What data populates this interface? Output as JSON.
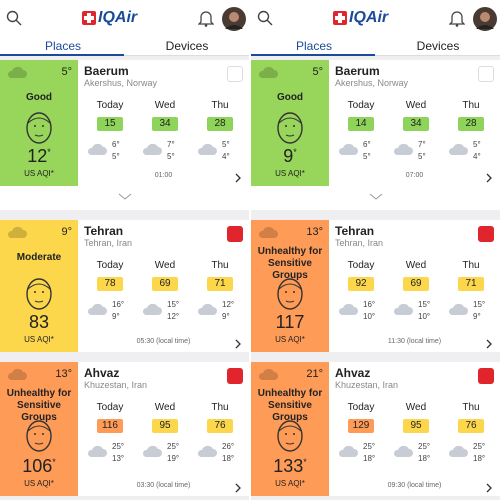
{
  "panels": [
    {
      "brand": "IQAir",
      "tabs": [
        "Places",
        "Devices"
      ],
      "cards": [
        {
          "temp": "5°",
          "level": "Good",
          "level_color": "#97d65a",
          "aqi": 12,
          "aqi_mark": "*",
          "unit": "US AQI*",
          "city": "Baerum",
          "region": "Akershus, Norway",
          "time": "01:00",
          "forecast": [
            {
              "day": "Today",
              "aqi": 15,
              "color": "#8fd45a",
              "high": "6°",
              "low": "5°"
            },
            {
              "day": "Wed",
              "aqi": 34,
              "color": "#8fd45a",
              "high": "7°",
              "low": "5°"
            },
            {
              "day": "Thu",
              "aqi": 28,
              "color": "#8fd45a",
              "high": "5°",
              "low": "4°"
            }
          ]
        },
        {
          "temp": "9°",
          "level": "Moderate",
          "level_color": "#fdd74b",
          "aqi": 83,
          "unit": "US AQI*",
          "city": "Tehran",
          "region": "Tehran, Iran",
          "time": "05:30 (local time)",
          "forecast": [
            {
              "day": "Today",
              "aqi": 78,
              "color": "#fdd74b",
              "high": "16°",
              "low": "9°"
            },
            {
              "day": "Wed",
              "aqi": 69,
              "color": "#fdd74b",
              "high": "15°",
              "low": "12°"
            },
            {
              "day": "Thu",
              "aqi": 71,
              "color": "#fdd74b",
              "high": "12°",
              "low": "9°"
            }
          ]
        },
        {
          "temp": "13°",
          "level": "Unhealthy for Sensitive Groups",
          "level_color": "#fe9b57",
          "aqi": 106,
          "aqi_mark": "*",
          "unit": "US AQI*",
          "city": "Ahvaz",
          "region": "Khuzestan, Iran",
          "time": "03:30 (local time)",
          "forecast": [
            {
              "day": "Today",
              "aqi": 116,
              "color": "#fe9b57",
              "high": "25°",
              "low": "13°"
            },
            {
              "day": "Wed",
              "aqi": 95,
              "color": "#fdd74b",
              "high": "25°",
              "low": "19°"
            },
            {
              "day": "Thu",
              "aqi": 76,
              "color": "#fdd74b",
              "high": "26°",
              "low": "18°"
            }
          ]
        }
      ]
    },
    {
      "brand": "IQAir",
      "tabs": [
        "Places",
        "Devices"
      ],
      "cards": [
        {
          "temp": "5°",
          "level": "Good",
          "level_color": "#97d65a",
          "aqi": 9,
          "aqi_mark": "*",
          "unit": "US AQI*",
          "city": "Baerum",
          "region": "Akershus, Norway",
          "time": "07:00",
          "forecast": [
            {
              "day": "Today",
              "aqi": 14,
              "color": "#8fd45a",
              "high": "6°",
              "low": "5°"
            },
            {
              "day": "Wed",
              "aqi": 34,
              "color": "#8fd45a",
              "high": "7°",
              "low": "5°"
            },
            {
              "day": "Thu",
              "aqi": 28,
              "color": "#8fd45a",
              "high": "5°",
              "low": "4°"
            }
          ]
        },
        {
          "temp": "13°",
          "level": "Unhealthy for Sensitive Groups",
          "level_color": "#fe9b57",
          "aqi": 117,
          "unit": "US AQI*",
          "city": "Tehran",
          "region": "Tehran, Iran",
          "time": "11:30 (local time)",
          "forecast": [
            {
              "day": "Today",
              "aqi": 92,
              "color": "#fdd74b",
              "high": "16°",
              "low": "10°"
            },
            {
              "day": "Wed",
              "aqi": 69,
              "color": "#fdd74b",
              "high": "15°",
              "low": "10°"
            },
            {
              "day": "Thu",
              "aqi": 71,
              "color": "#fdd74b",
              "high": "15°",
              "low": "9°"
            }
          ]
        },
        {
          "temp": "21°",
          "level": "Unhealthy for Sensitive Groups",
          "level_color": "#fe9b57",
          "aqi": 133,
          "aqi_mark": "*",
          "unit": "US AQI*",
          "city": "Ahvaz",
          "region": "Khuzestan, Iran",
          "time": "09:30 (local time)",
          "forecast": [
            {
              "day": "Today",
              "aqi": 129,
              "color": "#fe9b57",
              "high": "25°",
              "low": "18°"
            },
            {
              "day": "Wed",
              "aqi": 95,
              "color": "#fdd74b",
              "high": "25°",
              "low": "18°"
            },
            {
              "day": "Thu",
              "aqi": 76,
              "color": "#fdd74b",
              "high": "25°",
              "low": "18°"
            }
          ]
        }
      ]
    }
  ]
}
